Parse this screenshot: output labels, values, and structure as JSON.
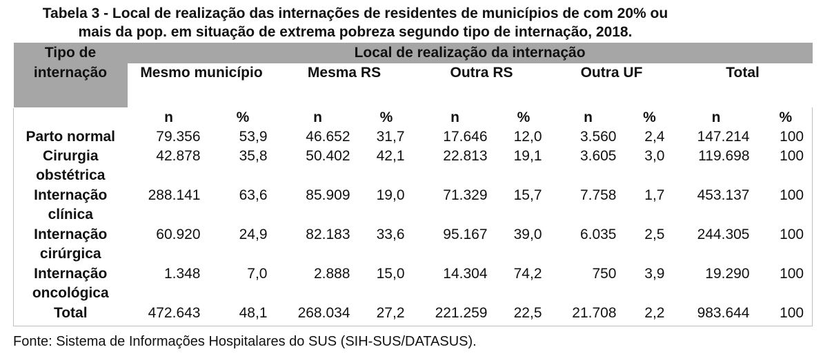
{
  "title": {
    "line1": "Tabela 3 - Local de realização das internações de residentes de municípios de com 20% ou",
    "line2": "mais da pop. em situação de extrema pobreza segundo tipo de internação, 2018."
  },
  "header": {
    "tipo": "Tipo de internação",
    "local": "Local de realização da internação",
    "groups": [
      "Mesmo município",
      "Mesma RS",
      "Outra RS",
      "Outra UF",
      "Total"
    ],
    "n_label": "n",
    "pct_label": "%"
  },
  "rows": [
    {
      "label": "Parto normal",
      "cells": [
        "79.356",
        "53,9",
        "46.652",
        "31,7",
        "17.646",
        "12,0",
        "3.560",
        "2,4",
        "147.214",
        "100"
      ]
    },
    {
      "label": "Cirurgia obstétrica",
      "cells": [
        "42.878",
        "35,8",
        "50.402",
        "42,1",
        "22.813",
        "19,1",
        "3.605",
        "3,0",
        "119.698",
        "100"
      ]
    },
    {
      "label": "Internação clínica",
      "cells": [
        "288.141",
        "63,6",
        "85.909",
        "19,0",
        "71.329",
        "15,7",
        "7.758",
        "1,7",
        "453.137",
        "100"
      ]
    },
    {
      "label": "Internação cirúrgica",
      "cells": [
        "60.920",
        "24,9",
        "82.183",
        "33,6",
        "95.167",
        "39,0",
        "6.035",
        "2,5",
        "244.305",
        "100"
      ]
    },
    {
      "label": "Internação oncológica",
      "cells": [
        "1.348",
        "7,0",
        "2.888",
        "15,0",
        "14.304",
        "74,2",
        "750",
        "3,9",
        "19.290",
        "100"
      ]
    },
    {
      "label": "Total",
      "cells": [
        "472.643",
        "48,1",
        "268.034",
        "27,2",
        "221.259",
        "22,5",
        "21.708",
        "2,2",
        "983.644",
        "100"
      ]
    }
  ],
  "source": "Fonte: Sistema de Informações Hospitalares do SUS (SIH-SUS/DATASUS)."
}
